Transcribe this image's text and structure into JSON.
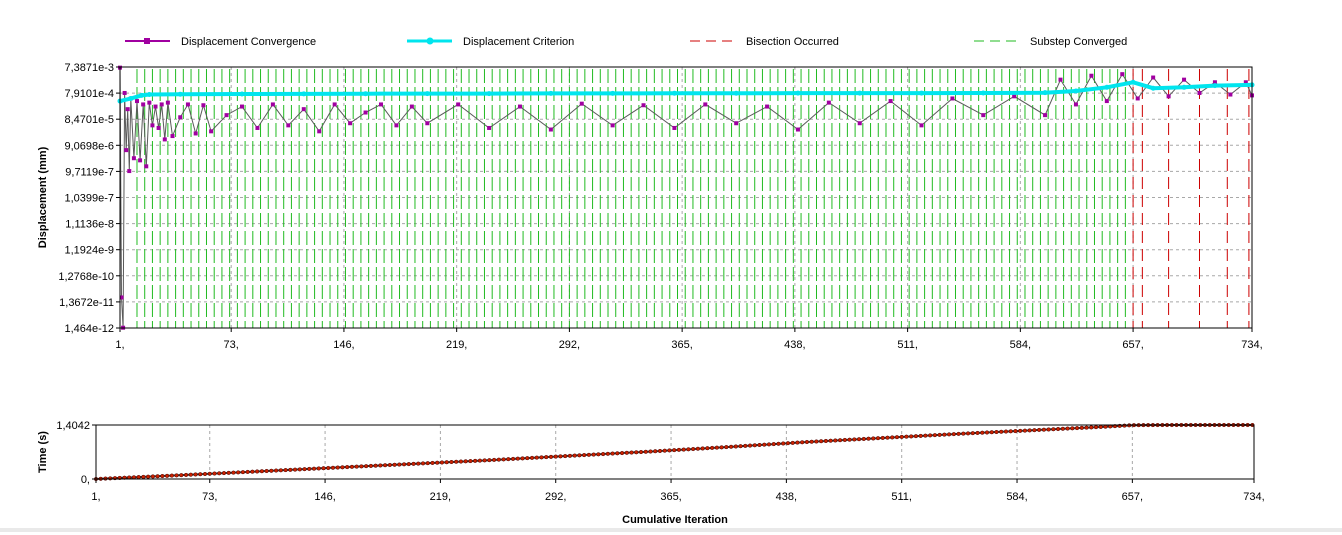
{
  "colors": {
    "displacement_convergence": "#a000a0",
    "displacement_convergence_line": "#5a5a5a",
    "displacement_criterion": "#00e5ee",
    "bisection": "#cc0000",
    "substep": "#22bb22",
    "time_marker": "#cc2200",
    "grid": "#a8a8a8"
  },
  "chart_data": [
    {
      "type": "line",
      "yscale": "log",
      "xlabel": "",
      "ylabel": "Displacement (mm)",
      "legend_position": "top",
      "grid": true,
      "x_ticks": [
        "1,",
        "73,",
        "146,",
        "219,",
        "292,",
        "365,",
        "438,",
        "511,",
        "584,",
        "657,",
        "734,"
      ],
      "x_tick_values": [
        1,
        73,
        146,
        219,
        292,
        365,
        438,
        511,
        584,
        657,
        734
      ],
      "xlim": [
        1,
        734
      ],
      "y_ticks": [
        "7,3871e-3",
        "7,9101e-4",
        "8,4701e-5",
        "9,0698e-6",
        "9,7119e-7",
        "1,0399e-7",
        "1,1136e-8",
        "1,1924e-9",
        "1,2768e-10",
        "1,3672e-11",
        "1,464e-12"
      ],
      "y_tick_values": [
        0.0073871,
        0.00079101,
        8.4701e-05,
        9.0698e-06,
        9.7119e-07,
        1.0399e-07,
        1.1136e-08,
        1.1924e-09,
        1.2768e-10,
        1.3672e-11,
        1.464e-12
      ],
      "ylim": [
        1.464e-12,
        0.0073871
      ],
      "series": [
        {
          "name": "Displacement Convergence",
          "x": [
            1,
            2,
            3,
            4,
            5,
            6,
            7,
            8,
            10,
            12,
            14,
            16,
            18,
            20,
            22,
            24,
            26,
            28,
            30,
            32,
            35,
            40,
            45,
            50,
            55,
            60,
            70,
            80,
            90,
            100,
            110,
            120,
            130,
            140,
            150,
            160,
            170,
            180,
            190,
            200,
            220,
            240,
            260,
            280,
            300,
            320,
            340,
            360,
            380,
            400,
            420,
            440,
            460,
            480,
            500,
            520,
            540,
            560,
            580,
            600,
            610,
            620,
            630,
            640,
            650,
            660,
            670,
            680,
            690,
            700,
            710,
            720,
            730,
            734
          ],
          "y": [
            0.007,
            2e-11,
            1.5e-12,
            0.0008,
            6e-06,
            0.0002,
            1e-06,
            0.0005,
            3e-06,
            0.0004,
            2.5e-06,
            0.0003,
            1.5e-06,
            0.00035,
            5e-05,
            0.00025,
            4e-05,
            0.0003,
            1.5e-05,
            0.00035,
            2e-05,
            0.0001,
            0.0003,
            2.5e-05,
            0.00028,
            3e-05,
            0.00012,
            0.00025,
            4e-05,
            0.0003,
            5e-05,
            0.0002,
            3e-05,
            0.0003,
            6e-05,
            0.00015,
            0.0003,
            5e-05,
            0.00025,
            6e-05,
            0.0003,
            4e-05,
            0.00025,
            3.5e-05,
            0.00032,
            5e-05,
            0.00028,
            4e-05,
            0.0003,
            6e-05,
            0.00025,
            3.5e-05,
            0.00035,
            6e-05,
            0.0004,
            5e-05,
            0.0005,
            0.00012,
            0.0006,
            0.00012,
            0.0025,
            0.0003,
            0.0035,
            0.0004,
            0.004,
            0.0005,
            0.003,
            0.0006,
            0.0025,
            0.0008,
            0.002,
            0.0007,
            0.002,
            0.00065
          ]
        },
        {
          "name": "Displacement Criterion",
          "x": [
            1,
            8,
            15,
            20,
            40,
            80,
            120,
            160,
            200,
            240,
            280,
            320,
            360,
            400,
            440,
            480,
            520,
            560,
            600,
            620,
            640,
            657,
            670,
            690,
            710,
            734
          ],
          "y": [
            0.0004,
            0.0005,
            0.00065,
            0.0007,
            0.00072,
            0.00073,
            0.00074,
            0.00075,
            0.00076,
            0.00076,
            0.00077,
            0.00077,
            0.00078,
            0.00078,
            0.00079,
            0.00079,
            0.00079,
            0.0008,
            0.00082,
            0.00095,
            0.0013,
            0.002,
            0.0012,
            0.0013,
            0.0015,
            0.0016
          ]
        }
      ],
      "markers": [
        {
          "name": "Bisection Occurred",
          "x": [
            1,
            657,
            663,
            680,
            700,
            718,
            732
          ]
        },
        {
          "name": "Substep Converged",
          "interval_description": "",
          "x_start": 12,
          "x_end": 654,
          "step": 5
        }
      ]
    },
    {
      "type": "scatter",
      "xlabel": "Cumulative Iteration",
      "ylabel": "Time (s)",
      "grid": true,
      "x_ticks": [
        "1,",
        "73,",
        "146,",
        "219,",
        "292,",
        "365,",
        "438,",
        "511,",
        "584,",
        "657,",
        "734,"
      ],
      "x_tick_values": [
        1,
        73,
        146,
        219,
        292,
        365,
        438,
        511,
        584,
        657,
        734
      ],
      "xlim": [
        1,
        734
      ],
      "y_ticks": [
        "1,4042",
        "0,"
      ],
      "y_tick_values": [
        1.4042,
        0
      ],
      "ylim": [
        0,
        1.4042
      ],
      "series": [
        {
          "name": "",
          "x": [
            1,
            50,
            100,
            150,
            200,
            250,
            300,
            350,
            400,
            450,
            500,
            550,
            600,
            640,
            657,
            680,
            700,
            734
          ],
          "y": [
            0,
            0.09,
            0.19,
            0.29,
            0.39,
            0.49,
            0.6,
            0.71,
            0.83,
            0.96,
            1.07,
            1.18,
            1.28,
            1.36,
            1.4,
            1.4042,
            1.4042,
            1.4042
          ]
        }
      ]
    }
  ]
}
